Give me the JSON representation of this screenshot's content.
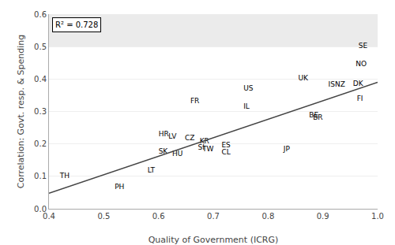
{
  "chart_data": {
    "type": "scatter",
    "xlabel": "Quality of Government (ICRG)",
    "ylabel": "Correlation: Govt. resp. & Spending",
    "annotations": [
      "R² = 0.728"
    ],
    "xlim": [
      0.4,
      1.0
    ],
    "ylim": [
      0.0,
      0.6
    ],
    "xticks": [
      0.4,
      0.5,
      0.6,
      0.7,
      0.8,
      0.9,
      {
        "value": 1.0,
        "label": "1.0"
      }
    ],
    "yticks": [
      {
        "value": 0.0,
        "label": "0.0"
      },
      0.1,
      0.2,
      0.3,
      0.4,
      0.5,
      0.6
    ],
    "grid": "y",
    "band": {
      "y": [
        0.5,
        0.6
      ],
      "color": "#ebebeb"
    },
    "series": [
      {
        "type": "text",
        "marker": "none",
        "labels": [
          "TH",
          "PH",
          "LT",
          "SK",
          "HU",
          "HR",
          "LV",
          "CZ",
          "TW",
          "SI",
          "KR",
          "FR",
          "ES",
          "CL",
          "IL",
          "US",
          "JP",
          "UK",
          "BE",
          "BR",
          "IS",
          "NZ",
          "DK",
          "FI",
          "NO",
          "SE"
        ],
        "x": [
          0.42,
          0.52,
          0.58,
          0.6,
          0.625,
          0.6,
          0.618,
          0.648,
          0.68,
          0.672,
          0.675,
          0.658,
          0.715,
          0.715,
          0.755,
          0.755,
          0.828,
          0.855,
          0.875,
          0.882,
          0.91,
          0.922,
          0.955,
          0.962,
          0.96,
          0.965
        ],
        "values": [
          0.1,
          0.065,
          0.118,
          0.175,
          0.168,
          0.228,
          0.222,
          0.218,
          0.183,
          0.187,
          0.208,
          0.33,
          0.196,
          0.172,
          0.313,
          0.37,
          0.182,
          0.402,
          0.287,
          0.28,
          0.382,
          0.382,
          0.385,
          0.338,
          0.445,
          0.5
        ]
      },
      {
        "type": "line",
        "line_style": "solid",
        "color": "#444444",
        "x": [
          0.4,
          1.0
        ],
        "values": [
          0.048,
          0.39
        ]
      }
    ]
  }
}
